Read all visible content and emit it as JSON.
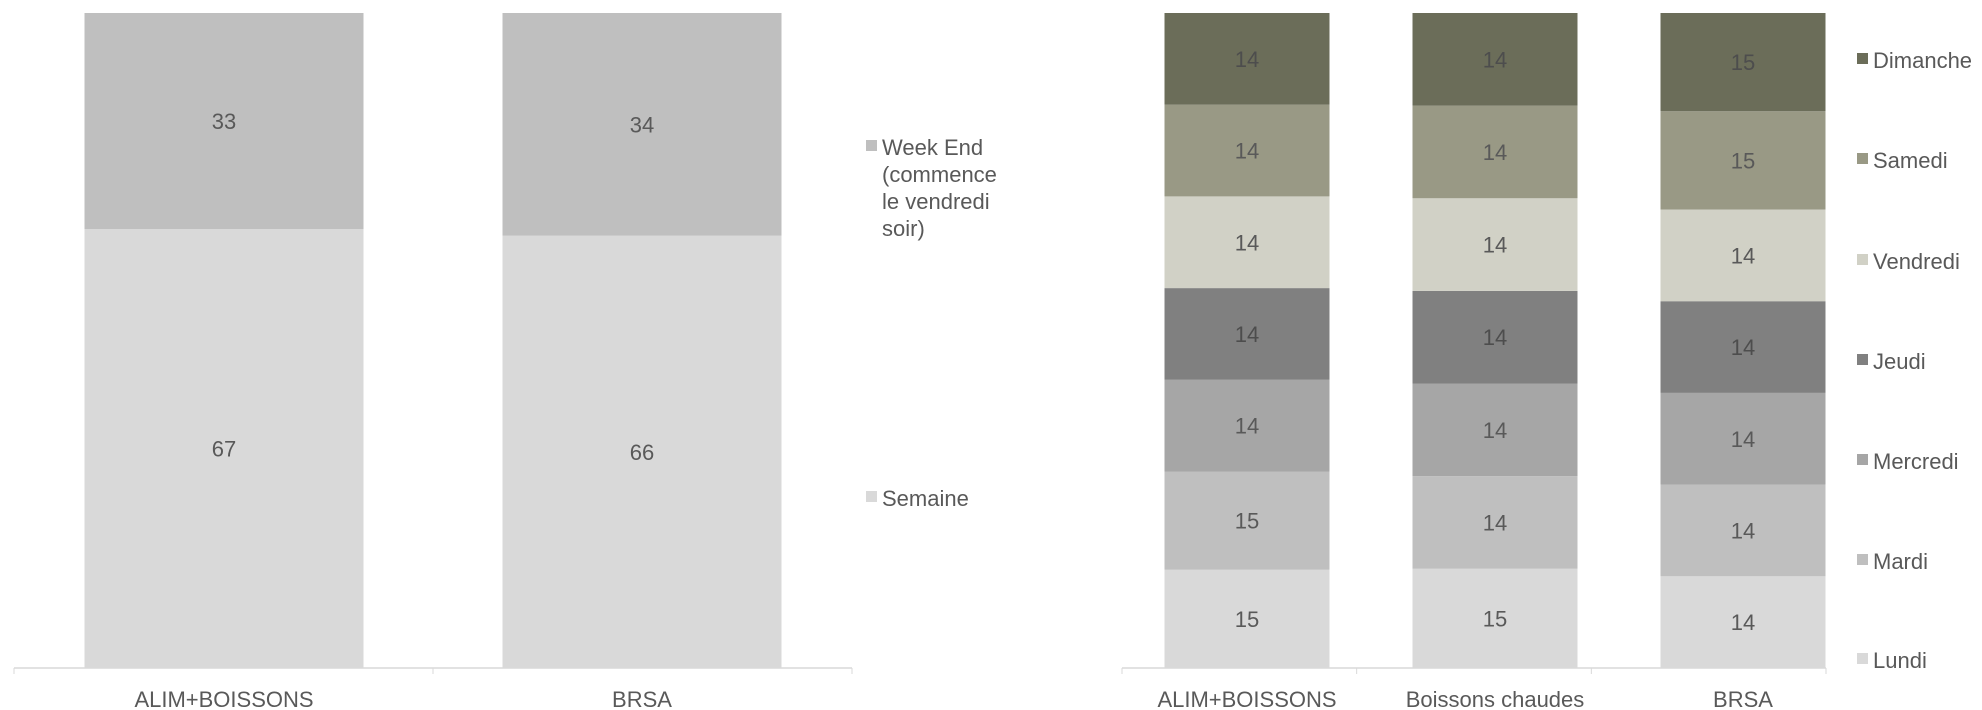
{
  "chart_data": [
    {
      "type": "bar",
      "stacked": true,
      "percent": true,
      "categories": [
        "ALIM+BOISSONS",
        "BRSA"
      ],
      "series": [
        {
          "name": "Semaine",
          "values": [
            67,
            66
          ],
          "color": "#d9d9d9"
        },
        {
          "name": "Week End (commence le vendredi soir)",
          "values": [
            33,
            34
          ],
          "color": "#bfbfbf"
        }
      ],
      "legend_lines": [
        "Week End",
        "(commence",
        "le vendredi",
        "soir)"
      ],
      "legend_position": "right",
      "ylim": [
        0,
        100
      ],
      "grid": false,
      "xlabel": "",
      "ylabel": ""
    },
    {
      "type": "bar",
      "stacked": true,
      "percent": true,
      "categories": [
        "ALIM+BOISSONS",
        "Boissons chaudes",
        "BRSA"
      ],
      "series": [
        {
          "name": "Lundi",
          "values": [
            15,
            15,
            14
          ],
          "color": "#d9d9d9"
        },
        {
          "name": "Mardi",
          "values": [
            15,
            14,
            14
          ],
          "color": "#bfbfbf"
        },
        {
          "name": "Mercredi",
          "values": [
            14,
            14,
            14
          ],
          "color": "#a6a6a6"
        },
        {
          "name": "Jeudi",
          "values": [
            14,
            14,
            14
          ],
          "color": "#808080"
        },
        {
          "name": "Vendredi",
          "values": [
            14,
            14,
            14
          ],
          "color": "#d1d1c6"
        },
        {
          "name": "Samedi",
          "values": [
            14,
            14,
            15
          ],
          "color": "#999985"
        },
        {
          "name": "Dimanche",
          "values": [
            14,
            14,
            15
          ],
          "color": "#6b6d59"
        }
      ],
      "legend_position": "right",
      "ylim": [
        0,
        100
      ],
      "grid": false,
      "xlabel": "",
      "ylabel": ""
    }
  ]
}
